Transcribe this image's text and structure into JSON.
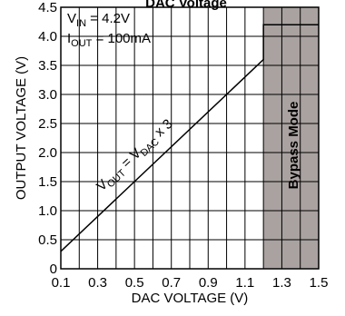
{
  "chart_data": {
    "type": "line",
    "title": "DAC Voltage",
    "xlabel": "DAC VOLTAGE (V)",
    "ylabel": "OUTPUT VOLTAGE (V)",
    "xlim": [
      0.1,
      1.5
    ],
    "ylim": [
      0,
      4.5
    ],
    "x_ticks": [
      "0.1",
      "0.3",
      "0.5",
      "0.7",
      "0.9",
      "1.1",
      "1.3",
      "1.5"
    ],
    "y_ticks": [
      "0",
      "0.5",
      "1.0",
      "1.5",
      "2.0",
      "2.5",
      "3.0",
      "3.5",
      "4.0",
      "4.5"
    ],
    "grid": true,
    "series": [
      {
        "x": [
          0.1,
          1.2,
          1.2,
          1.5
        ],
        "y": [
          0.3,
          3.6,
          4.2,
          4.2
        ]
      }
    ],
    "shaded_region": {
      "x_from": 1.2,
      "x_to": 1.5,
      "label": "Bypass Mode",
      "color": "#a9a2a0"
    },
    "annotations": {
      "vin_main": "V",
      "vin_sub": "IN",
      "vin_rest": " = 4.2V",
      "iout_main": "I",
      "iout_sub": "OUT",
      "iout_rest": " = 100mA",
      "formula_v1": "V",
      "formula_s1": "OUT",
      "formula_mid": " = V",
      "formula_s2": "DAC",
      "formula_end": " x 3"
    }
  }
}
